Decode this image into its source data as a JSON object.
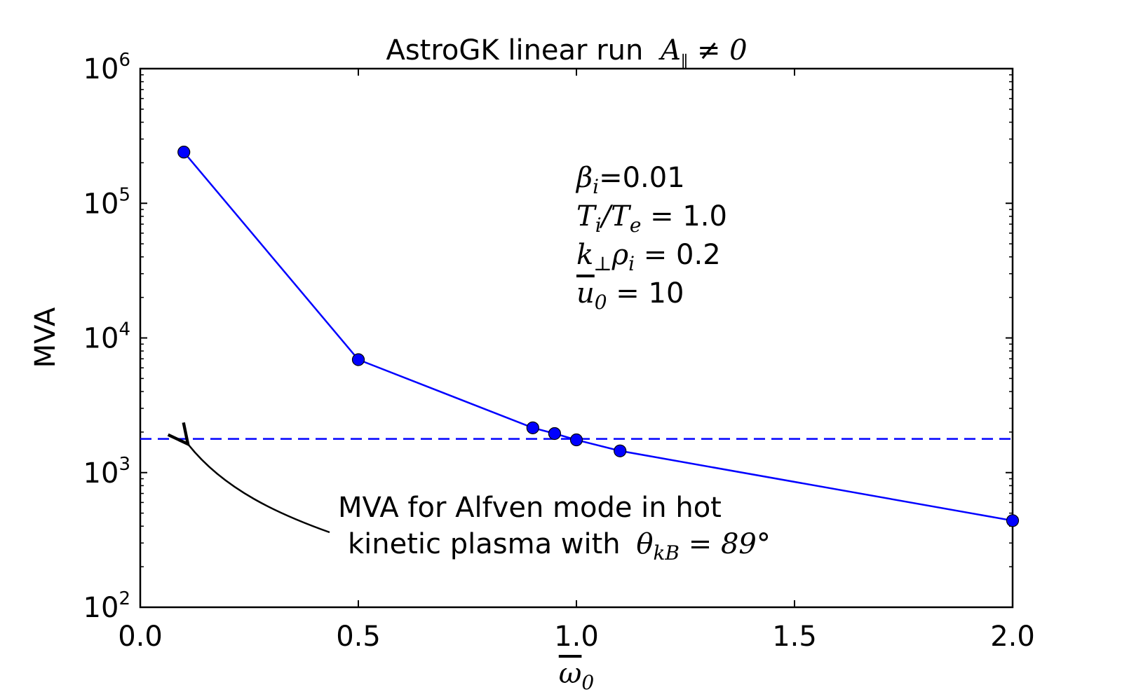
{
  "chart_data": {
    "type": "line",
    "title_prefix": "AstroGK linear run",
    "title_math": "A∥ ≠ 0",
    "xlabel": "ω̄0",
    "ylabel": "MVA",
    "xlim": [
      0.0,
      2.0
    ],
    "ylim": [
      100,
      1000000
    ],
    "yscale": "log",
    "x_ticks": [
      "0.0",
      "0.5",
      "1.0",
      "1.5",
      "2.0"
    ],
    "y_ticks": [
      {
        "base": "10",
        "exp": "2"
      },
      {
        "base": "10",
        "exp": "3"
      },
      {
        "base": "10",
        "exp": "4"
      },
      {
        "base": "10",
        "exp": "5"
      },
      {
        "base": "10",
        "exp": "6"
      }
    ],
    "series": [
      {
        "x": [
          0.1,
          0.5,
          0.9,
          0.95,
          1.0,
          1.1,
          2.0
        ],
        "y": [
          240000,
          6900,
          2150,
          1950,
          1750,
          1450,
          440
        ],
        "color": "#0000ff",
        "marker": "circle"
      }
    ],
    "reference_line": {
      "y": 1780,
      "style": "dashed",
      "color": "#0000ff"
    },
    "parameters": [
      {
        "sym": "βi",
        "val": "=0.01"
      },
      {
        "sym": "Ti/Te =",
        "val": "1.0"
      },
      {
        "sym": "k⊥ρi =",
        "val": "0.2"
      },
      {
        "sym": "ū0 =",
        "val": "10"
      }
    ],
    "annotation": {
      "line1": "MVA for Alfven mode in hot",
      "line2": "kinetic plasma with",
      "line2_math": "θkB = 89°"
    }
  }
}
